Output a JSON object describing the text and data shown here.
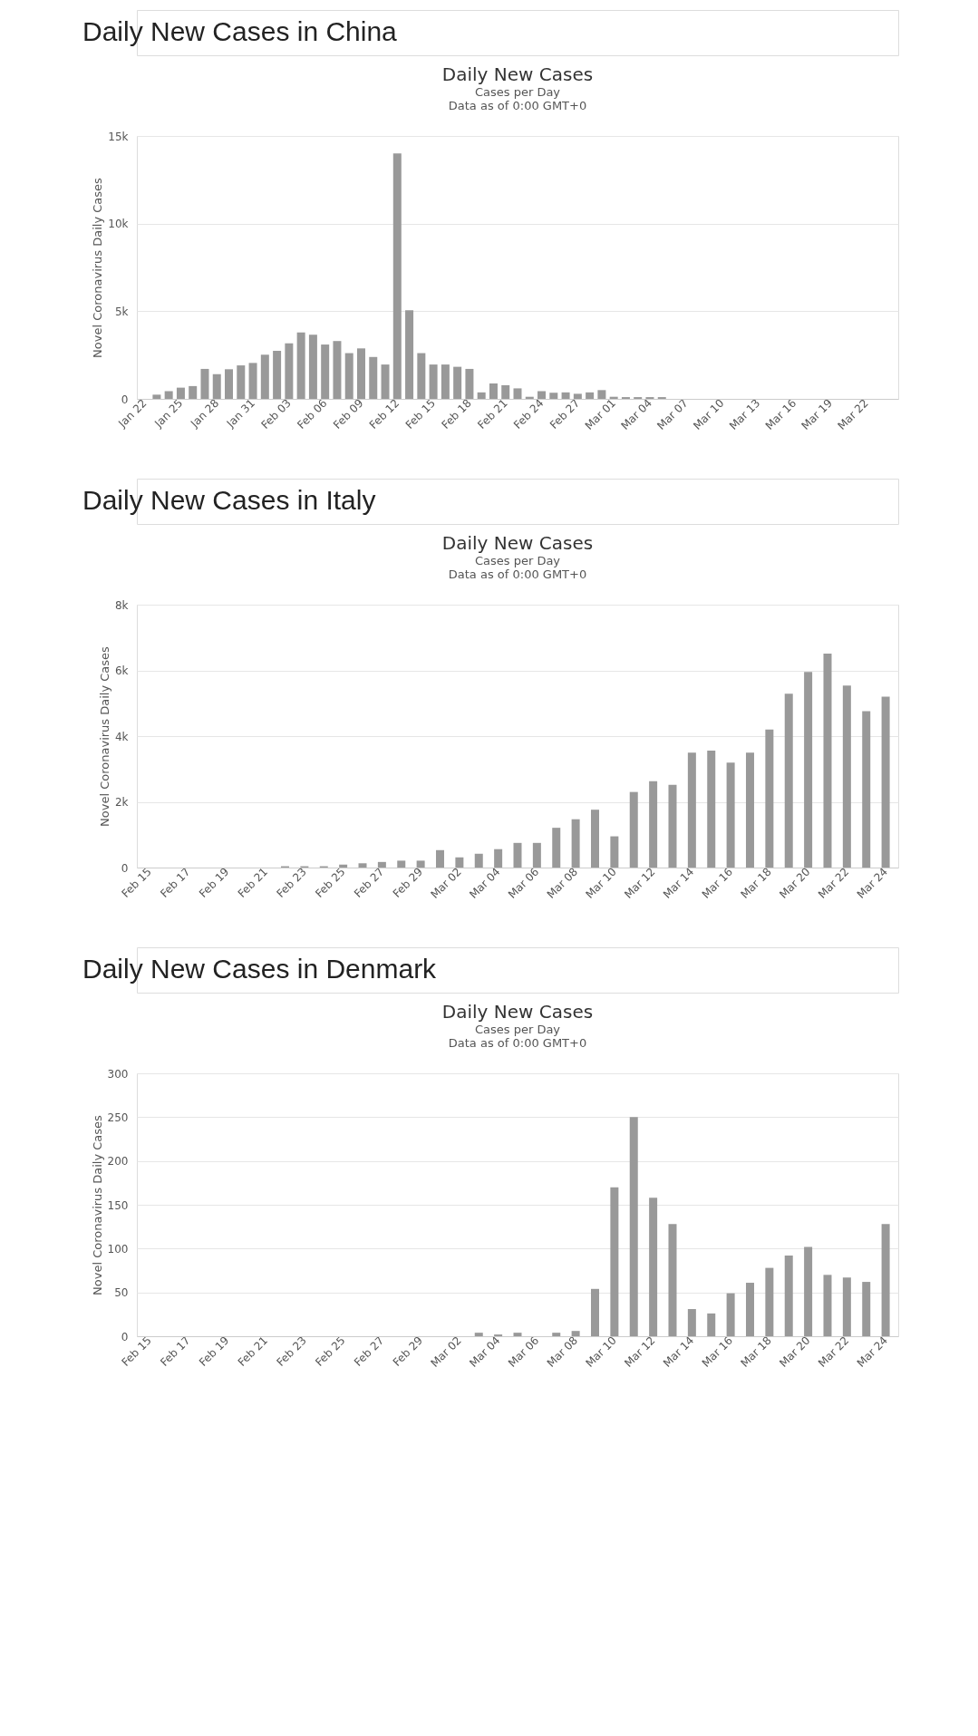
{
  "chart_data": [
    {
      "type": "bar",
      "annotations": [
        "Daily New Cases in China"
      ],
      "title": "Daily New Cases",
      "subtitle": "Cases per Day\nData as of 0:00 GMT+0",
      "ylabel": "Novel Coronavirus Daily Cases",
      "categories": [
        "Jan 22",
        null,
        null,
        "Jan 25",
        null,
        null,
        "Jan 28",
        null,
        null,
        "Jan 31",
        null,
        null,
        "Feb 03",
        null,
        null,
        "Feb 06",
        null,
        null,
        "Feb 09",
        null,
        null,
        "Feb 12",
        null,
        null,
        "Feb 15",
        null,
        null,
        "Feb 18",
        null,
        null,
        "Feb 21",
        null,
        null,
        "Feb 24",
        null,
        null,
        "Feb 27",
        null,
        null,
        "Mar 01",
        null,
        null,
        "Mar 04",
        null,
        null,
        "Mar 07",
        null,
        null,
        "Mar 10",
        null,
        null,
        "Mar 13",
        null,
        null,
        "Mar 16",
        null,
        null,
        "Mar 19",
        null,
        null,
        "Mar 22",
        null,
        null
      ],
      "values": [
        0,
        240,
        440,
        640,
        730,
        1710,
        1410,
        1690,
        1910,
        2050,
        2520,
        2740,
        3170,
        3790,
        3660,
        3100,
        3300,
        2610,
        2880,
        2390,
        1960,
        14000,
        5060,
        2610,
        1960,
        1960,
        1830,
        1710,
        370,
        880,
        780,
        600,
        120,
        440,
        350,
        370,
        290,
        370,
        500,
        120,
        100,
        100,
        100,
        100,
        0,
        0,
        0,
        0,
        0,
        0,
        0,
        0,
        0,
        0,
        0,
        0,
        0,
        0,
        0,
        0,
        0,
        0,
        0
      ],
      "color": "#999999",
      "ylim": [
        0,
        15000
      ],
      "yticks": [
        0,
        {
          "value": 5000,
          "label": "5k"
        },
        {
          "value": 10000,
          "label": "10k"
        },
        {
          "value": 15000,
          "label": "15k"
        }
      ],
      "grid": "y"
    },
    {
      "type": "bar",
      "annotations": [
        "Daily New Cases in Italy"
      ],
      "title": "Daily New Cases",
      "subtitle": "Cases per Day\nData as of 0:00 GMT+0",
      "ylabel": "Novel Coronavirus Daily Cases",
      "categories": [
        "Feb 15",
        null,
        "Feb 17",
        null,
        "Feb 19",
        null,
        "Feb 21",
        null,
        "Feb 23",
        null,
        "Feb 25",
        null,
        "Feb 27",
        null,
        "Feb 29",
        null,
        "Mar 02",
        null,
        "Mar 04",
        null,
        "Mar 06",
        null,
        "Mar 08",
        null,
        "Mar 10",
        null,
        "Mar 12",
        null,
        "Mar 14",
        null,
        "Mar 16",
        null,
        "Mar 18",
        null,
        "Mar 20",
        null,
        "Mar 22",
        null,
        "Mar 24"
      ],
      "values": [
        0,
        0,
        0,
        0,
        0,
        0,
        0,
        40,
        40,
        40,
        90,
        130,
        170,
        210,
        210,
        530,
        310,
        420,
        560,
        750,
        750,
        1210,
        1470,
        1760,
        950,
        2300,
        2630,
        2520,
        3500,
        3560,
        3190,
        3500,
        4200,
        5290,
        5950,
        6510,
        5540,
        4760,
        5200
      ],
      "color": "#999999",
      "ylim": [
        0,
        8000
      ],
      "yticks": [
        0,
        {
          "value": 2000,
          "label": "2k"
        },
        {
          "value": 4000,
          "label": "4k"
        },
        {
          "value": 6000,
          "label": "6k"
        },
        {
          "value": 8000,
          "label": "8k"
        }
      ],
      "grid": "y"
    },
    {
      "type": "bar",
      "annotations": [
        "Daily New Cases in Denmark"
      ],
      "title": "Daily New Cases",
      "subtitle": "Cases per Day\nData as of 0:00 GMT+0",
      "ylabel": "Novel Coronavirus Daily Cases",
      "categories": [
        "Feb 15",
        null,
        "Feb 17",
        null,
        "Feb 19",
        null,
        "Feb 21",
        null,
        "Feb 23",
        null,
        "Feb 25",
        null,
        "Feb 27",
        null,
        "Feb 29",
        null,
        "Mar 02",
        null,
        "Mar 04",
        null,
        "Mar 06",
        null,
        "Mar 08",
        null,
        "Mar 10",
        null,
        "Mar 12",
        null,
        "Mar 14",
        null,
        "Mar 16",
        null,
        "Mar 18",
        null,
        "Mar 20",
        null,
        "Mar 22",
        null,
        "Mar 24"
      ],
      "values": [
        0,
        0,
        0,
        0,
        0,
        0,
        0,
        0,
        0,
        0,
        0,
        0,
        0,
        0,
        0,
        0,
        0,
        4,
        2,
        4,
        0,
        4,
        6,
        54,
        170,
        250,
        158,
        128,
        31,
        26,
        49,
        61,
        78,
        92,
        102,
        70,
        67,
        62,
        128
      ],
      "color": "#999999",
      "ylim": [
        0,
        300
      ],
      "yticks": [
        0,
        50,
        100,
        150,
        200,
        250,
        300
      ],
      "grid": "y"
    }
  ]
}
